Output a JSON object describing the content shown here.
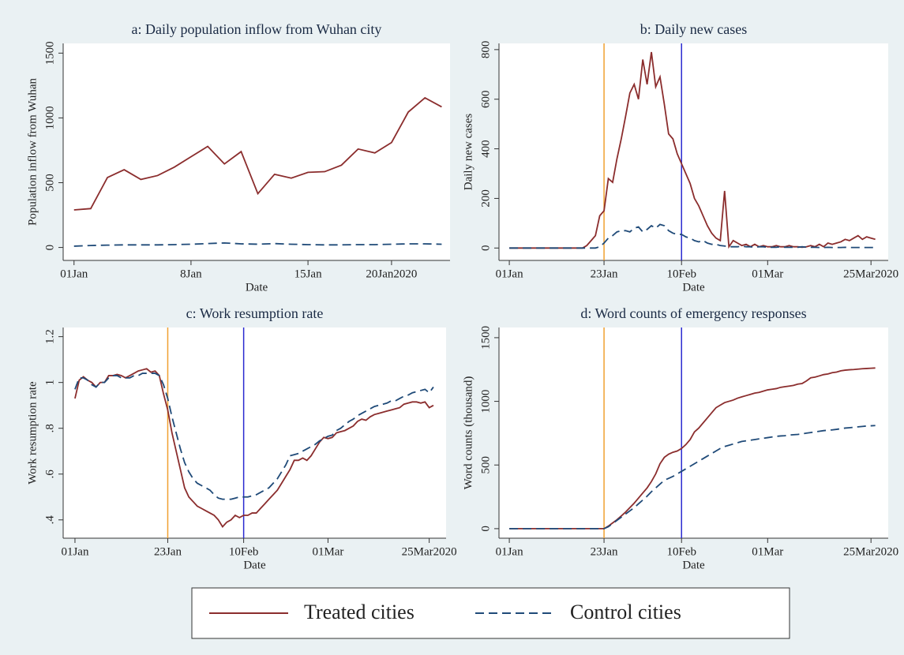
{
  "chart_data": [
    {
      "type": "line",
      "title": "a: Daily population inflow from Wuhan city",
      "xlabel": "Date",
      "ylabel": "Population inflow from Wuhan",
      "x": [
        1,
        2,
        3,
        4,
        5,
        6,
        7,
        8,
        9,
        10,
        11,
        12,
        13,
        14,
        15,
        16,
        17,
        18,
        19,
        20,
        21,
        22,
        23
      ],
      "series": [
        {
          "color": "#8b2d2d",
          "dash": "solid",
          "values": [
            290,
            300,
            540,
            600,
            525,
            555,
            620,
            700,
            780,
            645,
            740,
            415,
            565,
            535,
            580,
            585,
            635,
            760,
            730,
            810,
            1045,
            1155,
            1085
          ]
        },
        {
          "color": "#1f4a78",
          "dash": "dashed",
          "values": [
            10,
            15,
            18,
            20,
            20,
            20,
            22,
            25,
            30,
            35,
            28,
            25,
            30,
            25,
            22,
            20,
            20,
            22,
            22,
            25,
            28,
            28,
            25
          ]
        }
      ],
      "xlim": [
        0.35,
        23.5
      ],
      "ylim": [
        -100,
        1575
      ],
      "xticks": [
        {
          "value": 1,
          "label": "01Jan"
        },
        {
          "value": 8,
          "label": "8Jan"
        },
        {
          "value": 15,
          "label": "15Jan"
        },
        {
          "value": 20,
          "label": "20Jan2020"
        }
      ],
      "yticks": [
        0,
        500,
        1000,
        1500
      ],
      "vlines": []
    },
    {
      "type": "line",
      "title": "b: Daily new cases",
      "xlabel": "Date",
      "ylabel": "Daily new cases",
      "x": [
        1,
        2,
        3,
        4,
        5,
        6,
        7,
        8,
        9,
        10,
        11,
        12,
        13,
        14,
        15,
        16,
        17,
        18,
        19,
        20,
        21,
        22,
        23,
        24,
        25,
        26,
        27,
        28,
        29,
        30,
        31,
        32,
        33,
        34,
        35,
        36,
        37,
        38,
        39,
        40,
        41,
        42,
        43,
        44,
        45,
        46,
        47,
        48,
        49,
        50,
        51,
        52,
        53,
        54,
        55,
        56,
        57,
        58,
        59,
        60,
        61,
        62,
        63,
        64,
        65,
        66,
        67,
        68,
        69,
        70,
        71,
        72,
        73,
        74,
        75,
        76,
        77,
        78,
        79,
        80,
        81,
        82,
        83,
        84,
        85,
        86
      ],
      "series": [
        {
          "color": "#8b2d2d",
          "dash": "solid",
          "values": [
            0,
            0,
            0,
            0,
            0,
            0,
            0,
            0,
            0,
            0,
            0,
            0,
            0,
            0,
            0,
            0,
            0,
            0,
            10,
            30,
            50,
            130,
            150,
            280,
            265,
            360,
            440,
            530,
            625,
            660,
            600,
            760,
            660,
            790,
            650,
            690,
            580,
            460,
            440,
            380,
            340,
            300,
            260,
            200,
            170,
            130,
            90,
            60,
            40,
            30,
            230,
            5,
            30,
            20,
            10,
            15,
            5,
            15,
            5,
            10,
            5,
            5,
            10,
            5,
            5,
            10,
            5,
            5,
            3,
            5,
            10,
            5,
            15,
            5,
            20,
            15,
            20,
            25,
            35,
            30,
            40,
            50,
            35,
            45,
            40,
            35
          ]
        },
        {
          "color": "#1f4a78",
          "dash": "dashed",
          "values": [
            0,
            0,
            0,
            0,
            0,
            0,
            0,
            0,
            0,
            0,
            0,
            0,
            0,
            0,
            0,
            0,
            0,
            0,
            0,
            0,
            0,
            5,
            20,
            40,
            50,
            65,
            70,
            70,
            65,
            80,
            85,
            65,
            75,
            90,
            80,
            95,
            90,
            70,
            60,
            55,
            55,
            45,
            40,
            30,
            25,
            30,
            20,
            15,
            15,
            10,
            8,
            5,
            5,
            5,
            8,
            5,
            5,
            3,
            5,
            5,
            3,
            3,
            3,
            5,
            3,
            3,
            3,
            3,
            5,
            3,
            3,
            3,
            2,
            2,
            3,
            2,
            2,
            2,
            3,
            2,
            2,
            2,
            2,
            2,
            2,
            2
          ]
        }
      ],
      "xlim": [
        -1.4,
        89
      ],
      "ylim": [
        -50,
        825
      ],
      "xticks": [
        {
          "value": 1,
          "label": "01Jan"
        },
        {
          "value": 23,
          "label": "23Jan"
        },
        {
          "value": 41,
          "label": "10Feb"
        },
        {
          "value": 61,
          "label": "01Mar"
        },
        {
          "value": 85,
          "label": "25Mar2020"
        }
      ],
      "yticks": [
        0,
        200,
        400,
        600,
        800
      ],
      "vlines": [
        {
          "value": 23,
          "color": "#f0a030"
        },
        {
          "value": 41,
          "color": "#2a2ad0"
        }
      ]
    },
    {
      "type": "line",
      "title": "c: Work resumption rate",
      "xlabel": "Date",
      "ylabel": "Work resumption rate",
      "x": [
        1,
        2,
        3,
        4,
        5,
        6,
        7,
        8,
        9,
        10,
        11,
        12,
        13,
        14,
        15,
        16,
        17,
        18,
        19,
        20,
        21,
        22,
        23,
        24,
        25,
        26,
        27,
        28,
        29,
        30,
        31,
        32,
        33,
        34,
        35,
        36,
        37,
        38,
        39,
        40,
        41,
        42,
        43,
        44,
        45,
        46,
        47,
        48,
        49,
        50,
        51,
        52,
        53,
        54,
        55,
        56,
        57,
        58,
        59,
        60,
        61,
        62,
        63,
        64,
        65,
        66,
        67,
        68,
        69,
        70,
        71,
        72,
        73,
        74,
        75,
        76,
        77,
        78,
        79,
        80,
        81,
        82,
        83,
        84,
        85,
        86
      ],
      "series": [
        {
          "color": "#8b2d2d",
          "dash": "solid",
          "values": [
            0.93,
            1.01,
            1.025,
            1.01,
            1.0,
            0.98,
            1.0,
            1.0,
            1.03,
            1.03,
            1.035,
            1.03,
            1.02,
            1.03,
            1.04,
            1.05,
            1.055,
            1.06,
            1.045,
            1.05,
            1.03,
            0.95,
            0.88,
            0.78,
            0.7,
            0.62,
            0.54,
            0.5,
            0.48,
            0.46,
            0.45,
            0.44,
            0.43,
            0.42,
            0.4,
            0.37,
            0.39,
            0.4,
            0.42,
            0.41,
            0.42,
            0.42,
            0.43,
            0.43,
            0.45,
            0.47,
            0.49,
            0.51,
            0.53,
            0.56,
            0.59,
            0.62,
            0.66,
            0.66,
            0.67,
            0.66,
            0.68,
            0.71,
            0.74,
            0.76,
            0.755,
            0.76,
            0.78,
            0.785,
            0.79,
            0.8,
            0.81,
            0.83,
            0.84,
            0.835,
            0.85,
            0.86,
            0.865,
            0.87,
            0.875,
            0.88,
            0.885,
            0.89,
            0.905,
            0.91,
            0.915,
            0.915,
            0.91,
            0.915,
            0.89,
            0.9
          ]
        },
        {
          "color": "#1f4a78",
          "dash": "dashed",
          "values": [
            0.97,
            1.02,
            1.02,
            1.01,
            0.99,
            0.98,
            1.0,
            1.0,
            1.02,
            1.03,
            1.03,
            1.02,
            1.02,
            1.02,
            1.03,
            1.03,
            1.04,
            1.04,
            1.04,
            1.04,
            1.03,
            0.99,
            0.93,
            0.85,
            0.78,
            0.71,
            0.65,
            0.61,
            0.58,
            0.56,
            0.55,
            0.54,
            0.53,
            0.51,
            0.495,
            0.49,
            0.49,
            0.49,
            0.495,
            0.5,
            0.5,
            0.5,
            0.505,
            0.51,
            0.52,
            0.53,
            0.54,
            0.56,
            0.58,
            0.61,
            0.64,
            0.68,
            0.685,
            0.69,
            0.7,
            0.71,
            0.72,
            0.73,
            0.745,
            0.755,
            0.765,
            0.77,
            0.79,
            0.8,
            0.815,
            0.83,
            0.84,
            0.855,
            0.865,
            0.875,
            0.885,
            0.895,
            0.9,
            0.905,
            0.91,
            0.92,
            0.92,
            0.93,
            0.94,
            0.945,
            0.955,
            0.96,
            0.965,
            0.97,
            0.955,
            0.98
          ]
        }
      ],
      "xlim": [
        -1.8,
        89
      ],
      "ylim": [
        0.32,
        1.24
      ],
      "xticks": [
        {
          "value": 1,
          "label": "01Jan"
        },
        {
          "value": 23,
          "label": "23Jan"
        },
        {
          "value": 41,
          "label": "10Feb"
        },
        {
          "value": 61,
          "label": "01Mar"
        },
        {
          "value": 85,
          "label": "25Mar2020"
        }
      ],
      "yticks": [
        {
          "value": 0.4,
          "label": ".4"
        },
        {
          "value": 0.6,
          "label": ".6"
        },
        {
          "value": 0.8,
          "label": ".8"
        },
        1,
        {
          "value": 1.2,
          "label": "1.2"
        }
      ],
      "vlines": [
        {
          "value": 23,
          "color": "#f0a030"
        },
        {
          "value": 41,
          "color": "#2a2ad0"
        }
      ]
    },
    {
      "type": "line",
      "title": "d: Word counts of emergency responses",
      "xlabel": "Date",
      "ylabel": "Word counts (thousand)",
      "x": [
        1,
        2,
        3,
        4,
        5,
        6,
        7,
        8,
        9,
        10,
        11,
        12,
        13,
        14,
        15,
        16,
        17,
        18,
        19,
        20,
        21,
        22,
        23,
        24,
        25,
        26,
        27,
        28,
        29,
        30,
        31,
        32,
        33,
        34,
        35,
        36,
        37,
        38,
        39,
        40,
        41,
        42,
        43,
        44,
        45,
        46,
        47,
        48,
        49,
        50,
        51,
        52,
        53,
        54,
        55,
        56,
        57,
        58,
        59,
        60,
        61,
        62,
        63,
        64,
        65,
        66,
        67,
        68,
        69,
        70,
        71,
        72,
        73,
        74,
        75,
        76,
        77,
        78,
        79,
        80,
        81,
        82,
        83,
        84,
        85,
        86
      ],
      "series": [
        {
          "color": "#8b2d2d",
          "dash": "solid",
          "values": [
            0,
            0,
            0,
            0,
            0,
            0,
            0,
            0,
            0,
            0,
            0,
            0,
            0,
            0,
            0,
            0,
            0,
            0,
            0,
            0,
            0,
            0,
            0,
            20,
            45,
            70,
            100,
            130,
            165,
            200,
            240,
            280,
            320,
            370,
            430,
            510,
            560,
            585,
            600,
            610,
            630,
            660,
            700,
            760,
            790,
            830,
            870,
            910,
            950,
            970,
            990,
            1000,
            1010,
            1025,
            1035,
            1045,
            1055,
            1065,
            1070,
            1080,
            1090,
            1095,
            1100,
            1110,
            1115,
            1120,
            1125,
            1135,
            1140,
            1160,
            1185,
            1190,
            1200,
            1210,
            1215,
            1225,
            1230,
            1240,
            1245,
            1248,
            1250,
            1253,
            1256,
            1258,
            1260,
            1262
          ]
        },
        {
          "color": "#1f4a78",
          "dash": "dashed",
          "values": [
            0,
            0,
            0,
            0,
            0,
            0,
            0,
            0,
            0,
            0,
            0,
            0,
            0,
            0,
            0,
            0,
            0,
            0,
            0,
            0,
            0,
            0,
            0,
            15,
            40,
            65,
            90,
            115,
            140,
            165,
            195,
            225,
            255,
            290,
            320,
            350,
            380,
            395,
            410,
            430,
            450,
            470,
            490,
            510,
            530,
            550,
            570,
            590,
            610,
            630,
            645,
            655,
            665,
            675,
            685,
            690,
            695,
            700,
            705,
            710,
            715,
            720,
            725,
            728,
            730,
            735,
            738,
            740,
            745,
            750,
            755,
            760,
            765,
            770,
            773,
            776,
            780,
            785,
            790,
            793,
            796,
            800,
            803,
            806,
            808,
            810
          ]
        }
      ],
      "xlim": [
        -1.4,
        89
      ],
      "ylim": [
        -75,
        1580
      ],
      "xticks": [
        {
          "value": 1,
          "label": "01Jan"
        },
        {
          "value": 23,
          "label": "23Jan"
        },
        {
          "value": 41,
          "label": "10Feb"
        },
        {
          "value": 61,
          "label": "01Mar"
        },
        {
          "value": 85,
          "label": "25Mar2020"
        }
      ],
      "yticks": [
        0,
        500,
        1000,
        1500
      ],
      "vlines": [
        {
          "value": 23,
          "color": "#f0a030"
        },
        {
          "value": 41,
          "color": "#2a2ad0"
        }
      ]
    }
  ],
  "legend": [
    {
      "name": "Treated cities",
      "color": "#8b2d2d",
      "dash": "solid"
    },
    {
      "name": "Control cities",
      "color": "#1f4a78",
      "dash": "dashed"
    }
  ]
}
